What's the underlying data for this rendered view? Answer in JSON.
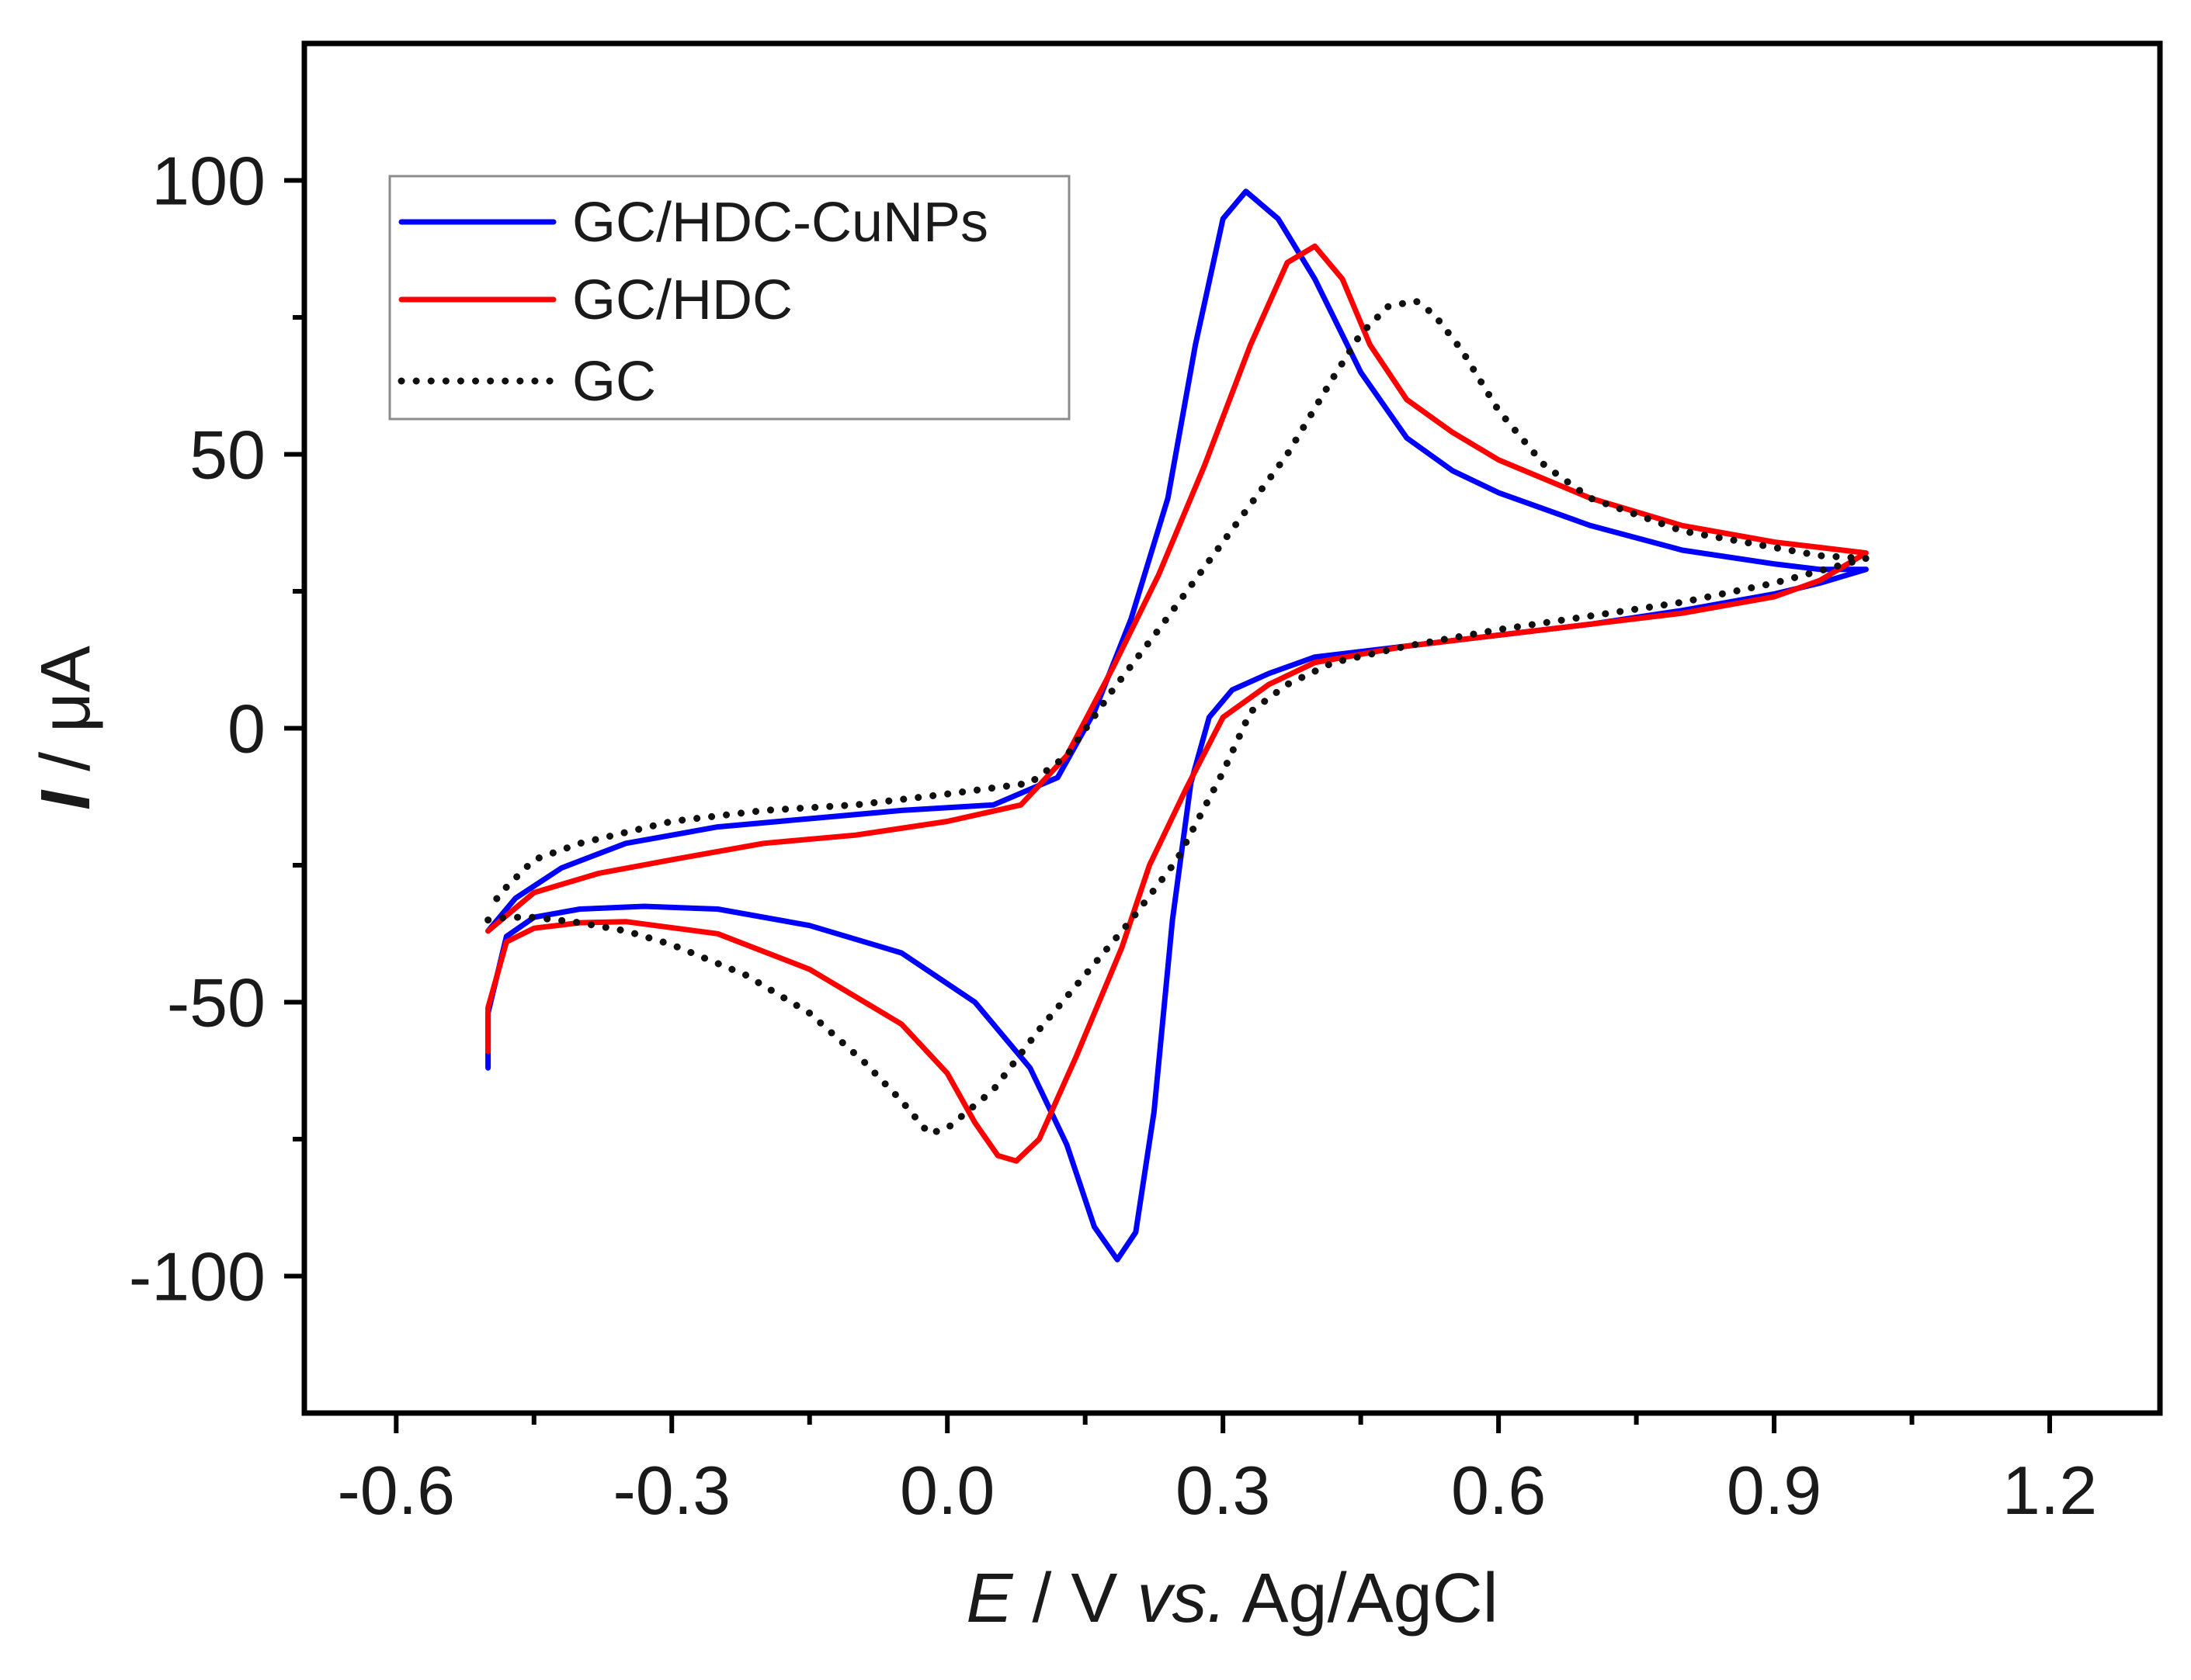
{
  "chart_data": {
    "type": "line",
    "title": "",
    "xlabel": {
      "var": "E",
      "unit": " / V ",
      "ref_em": "vs.",
      "ref": " Ag/AgCl"
    },
    "ylabel": {
      "var": "I",
      "unit": " / μA"
    },
    "xlim": [
      -0.7,
      1.32
    ],
    "ylim": [
      -125,
      125
    ],
    "x_ticks": [
      -0.6,
      -0.3,
      0.0,
      0.3,
      0.6,
      0.9,
      1.2
    ],
    "x_tick_labels": [
      "-0.6",
      "-0.3",
      "0.0",
      "0.3",
      "0.6",
      "0.9",
      "1.2"
    ],
    "y_ticks": [
      -100,
      -50,
      0,
      50,
      100
    ],
    "y_tick_labels": [
      "-100",
      "-50",
      "0",
      "50",
      "100"
    ],
    "grid": false,
    "legend_position": "top-left",
    "series": [
      {
        "name": "GC/HDC-CuNPs",
        "color": "#0000ff",
        "style": "solid",
        "points": [
          [
            -0.5,
            -62
          ],
          [
            -0.5,
            -52
          ],
          [
            -0.48,
            -38
          ],
          [
            -0.45,
            -34.5
          ],
          [
            -0.4,
            -33
          ],
          [
            -0.33,
            -32.5
          ],
          [
            -0.25,
            -33
          ],
          [
            -0.15,
            -36
          ],
          [
            -0.05,
            -41
          ],
          [
            0.03,
            -50
          ],
          [
            0.09,
            -62
          ],
          [
            0.13,
            -76
          ],
          [
            0.16,
            -91
          ],
          [
            0.185,
            -97
          ],
          [
            0.205,
            -92
          ],
          [
            0.225,
            -70
          ],
          [
            0.245,
            -35
          ],
          [
            0.265,
            -10
          ],
          [
            0.285,
            2
          ],
          [
            0.31,
            7
          ],
          [
            0.35,
            10
          ],
          [
            0.4,
            13
          ],
          [
            0.5,
            15
          ],
          [
            0.6,
            17
          ],
          [
            0.7,
            19
          ],
          [
            0.8,
            21.5
          ],
          [
            0.9,
            24.5
          ],
          [
            0.95,
            26.5
          ],
          [
            1.0,
            29
          ],
          [
            0.95,
            29
          ],
          [
            0.9,
            30
          ],
          [
            0.8,
            32.5
          ],
          [
            0.7,
            37
          ],
          [
            0.6,
            43
          ],
          [
            0.55,
            47
          ],
          [
            0.5,
            53
          ],
          [
            0.45,
            65
          ],
          [
            0.4,
            82
          ],
          [
            0.36,
            93
          ],
          [
            0.325,
            98
          ],
          [
            0.3,
            93
          ],
          [
            0.27,
            70
          ],
          [
            0.24,
            42
          ],
          [
            0.2,
            20
          ],
          [
            0.16,
            3
          ],
          [
            0.12,
            -9
          ],
          [
            0.05,
            -14
          ],
          [
            -0.05,
            -15
          ],
          [
            -0.15,
            -16.5
          ],
          [
            -0.25,
            -18
          ],
          [
            -0.35,
            -21
          ],
          [
            -0.42,
            -25.5
          ],
          [
            -0.47,
            -31
          ],
          [
            -0.5,
            -37
          ]
        ]
      },
      {
        "name": "GC/HDC",
        "color": "#ff0000",
        "style": "solid",
        "points": [
          [
            -0.5,
            -59
          ],
          [
            -0.5,
            -51
          ],
          [
            -0.48,
            -39
          ],
          [
            -0.45,
            -36.5
          ],
          [
            -0.4,
            -35.5
          ],
          [
            -0.35,
            -35.3
          ],
          [
            -0.25,
            -37.5
          ],
          [
            -0.15,
            -44
          ],
          [
            -0.05,
            -54
          ],
          [
            0.0,
            -63
          ],
          [
            0.03,
            -72
          ],
          [
            0.055,
            -78
          ],
          [
            0.075,
            -79
          ],
          [
            0.1,
            -75
          ],
          [
            0.14,
            -60
          ],
          [
            0.19,
            -40
          ],
          [
            0.22,
            -25
          ],
          [
            0.26,
            -11
          ],
          [
            0.3,
            2
          ],
          [
            0.35,
            8
          ],
          [
            0.4,
            12
          ],
          [
            0.5,
            15
          ],
          [
            0.6,
            17
          ],
          [
            0.7,
            19
          ],
          [
            0.8,
            21
          ],
          [
            0.9,
            24
          ],
          [
            0.95,
            27
          ],
          [
            1.0,
            32
          ],
          [
            0.95,
            33
          ],
          [
            0.9,
            34
          ],
          [
            0.8,
            37
          ],
          [
            0.7,
            42
          ],
          [
            0.6,
            49
          ],
          [
            0.55,
            54
          ],
          [
            0.5,
            60
          ],
          [
            0.46,
            70
          ],
          [
            0.43,
            82
          ],
          [
            0.4,
            88
          ],
          [
            0.37,
            85
          ],
          [
            0.33,
            70
          ],
          [
            0.28,
            48
          ],
          [
            0.23,
            28
          ],
          [
            0.18,
            11
          ],
          [
            0.13,
            -5
          ],
          [
            0.08,
            -14
          ],
          [
            0.0,
            -17
          ],
          [
            -0.1,
            -19.5
          ],
          [
            -0.2,
            -21
          ],
          [
            -0.3,
            -24
          ],
          [
            -0.38,
            -26.5
          ],
          [
            -0.45,
            -30
          ],
          [
            -0.5,
            -37
          ]
        ]
      },
      {
        "name": "GC",
        "color": "#111111",
        "style": "dotted",
        "points": [
          [
            -0.5,
            -35
          ],
          [
            -0.48,
            -34.5
          ],
          [
            -0.45,
            -34.5
          ],
          [
            -0.4,
            -35.5
          ],
          [
            -0.35,
            -37
          ],
          [
            -0.3,
            -39.5
          ],
          [
            -0.22,
            -45
          ],
          [
            -0.15,
            -52
          ],
          [
            -0.09,
            -61
          ],
          [
            -0.05,
            -68
          ],
          [
            -0.02,
            -74
          ],
          [
            0.0,
            -73
          ],
          [
            0.05,
            -66
          ],
          [
            0.1,
            -55
          ],
          [
            0.15,
            -45
          ],
          [
            0.2,
            -35
          ],
          [
            0.25,
            -24
          ],
          [
            0.3,
            -8
          ],
          [
            0.33,
            3
          ],
          [
            0.37,
            8
          ],
          [
            0.42,
            12
          ],
          [
            0.5,
            15
          ],
          [
            0.6,
            18
          ],
          [
            0.7,
            20.5
          ],
          [
            0.8,
            23
          ],
          [
            0.9,
            26.5
          ],
          [
            1.0,
            31
          ],
          [
            0.95,
            31.5
          ],
          [
            0.9,
            33
          ],
          [
            0.8,
            36
          ],
          [
            0.7,
            42
          ],
          [
            0.65,
            48
          ],
          [
            0.6,
            58
          ],
          [
            0.56,
            69
          ],
          [
            0.53,
            75.5
          ],
          [
            0.51,
            78
          ],
          [
            0.48,
            77
          ],
          [
            0.45,
            72
          ],
          [
            0.42,
            64
          ],
          [
            0.37,
            50
          ],
          [
            0.3,
            34
          ],
          [
            0.23,
            18
          ],
          [
            0.18,
            7
          ],
          [
            0.13,
            -5
          ],
          [
            0.09,
            -10
          ],
          [
            0.0,
            -12
          ],
          [
            -0.1,
            -14
          ],
          [
            -0.2,
            -15
          ],
          [
            -0.3,
            -17
          ],
          [
            -0.4,
            -21
          ],
          [
            -0.45,
            -24
          ],
          [
            -0.48,
            -29
          ],
          [
            -0.5,
            -33
          ]
        ]
      }
    ]
  }
}
